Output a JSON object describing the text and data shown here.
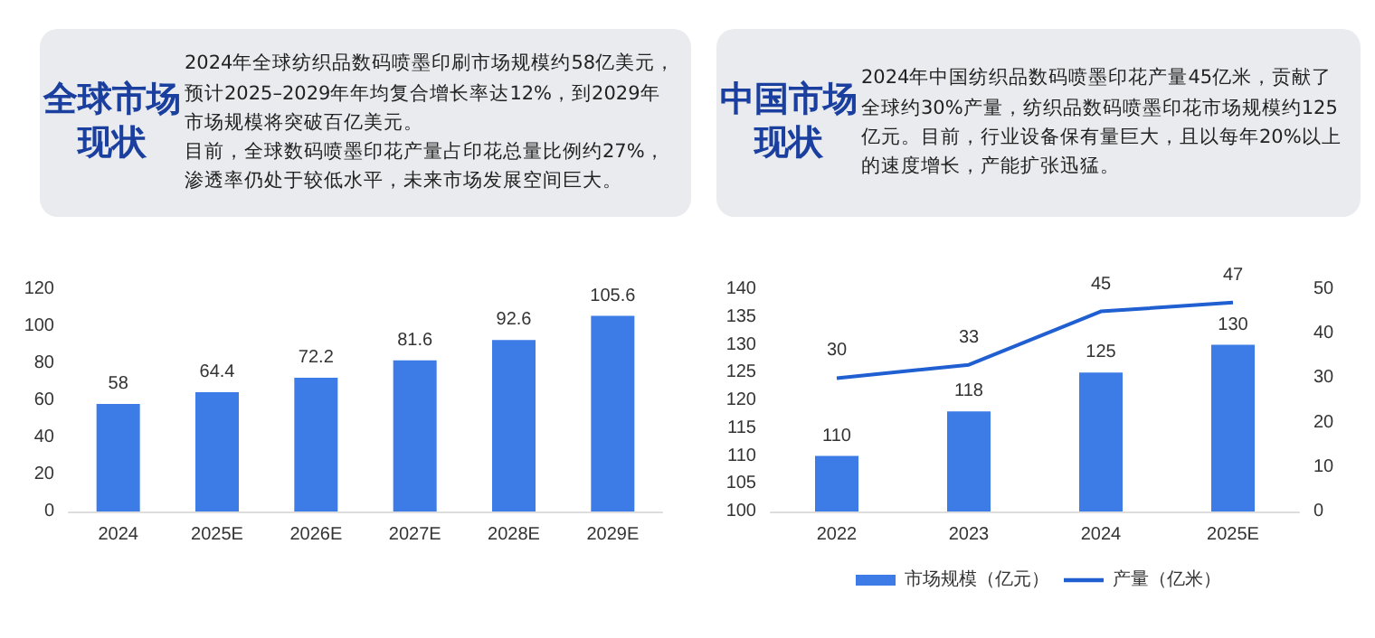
{
  "chart_data": [
    {
      "type": "other",
      "title": "全球市场现状",
      "annotations": [
        "2024年全球纺织品数码喷墨印刷市场规模约58亿美元，预计2025–2029年年均复合增长率达12%，到2029年市场规模将突破百亿美元。",
        "目前，全球数码喷墨印花产量占印花总量比例约27%，渗透率仍处于较低水平，未来市场发展空间巨大。"
      ]
    },
    {
      "type": "other",
      "title": "中国市场现状",
      "annotations": [
        "2024年中国纺织品数码喷墨印花产量45亿米，贡献了全球约30%产量，纺织品数码喷墨印花市场规模约125亿元。目前，行业设备保有量巨大，且以每年20%以上的速度增长，产能扩张迅猛。"
      ]
    },
    {
      "type": "bar",
      "categories": [
        "2024",
        "2025E",
        "2026E",
        "2027E",
        "2028E",
        "2029E"
      ],
      "series": [
        {
          "color": "#3d7ce6",
          "values": [
            58,
            64.4,
            72.2,
            81.6,
            92.6,
            105.6
          ]
        }
      ],
      "ylim": [
        0,
        120
      ],
      "yticks": [
        0,
        20,
        40,
        60,
        80,
        100,
        120
      ],
      "data_labels": true,
      "grid": false,
      "legend": false
    },
    {
      "type": "bar",
      "categories": [
        "2022",
        "2023",
        "2024",
        "2025E"
      ],
      "series": [
        {
          "name": "市场规模（亿元）",
          "color": "#3d7ce6",
          "values": [
            110,
            118,
            125,
            130
          ]
        },
        {
          "name": "产量（亿米）",
          "type": "line",
          "axis": "y2",
          "color": "#1f5fd1",
          "values": [
            30,
            33,
            45,
            47
          ]
        }
      ],
      "ylim": [
        100,
        140
      ],
      "yticks": [
        100,
        105,
        110,
        115,
        120,
        125,
        130,
        135,
        140
      ],
      "y2lim": [
        0,
        50
      ],
      "y2ticks": [
        0,
        10,
        20,
        30,
        40,
        50
      ],
      "data_labels": true,
      "grid": false,
      "legend": "bottom",
      "marker": "none"
    }
  ]
}
